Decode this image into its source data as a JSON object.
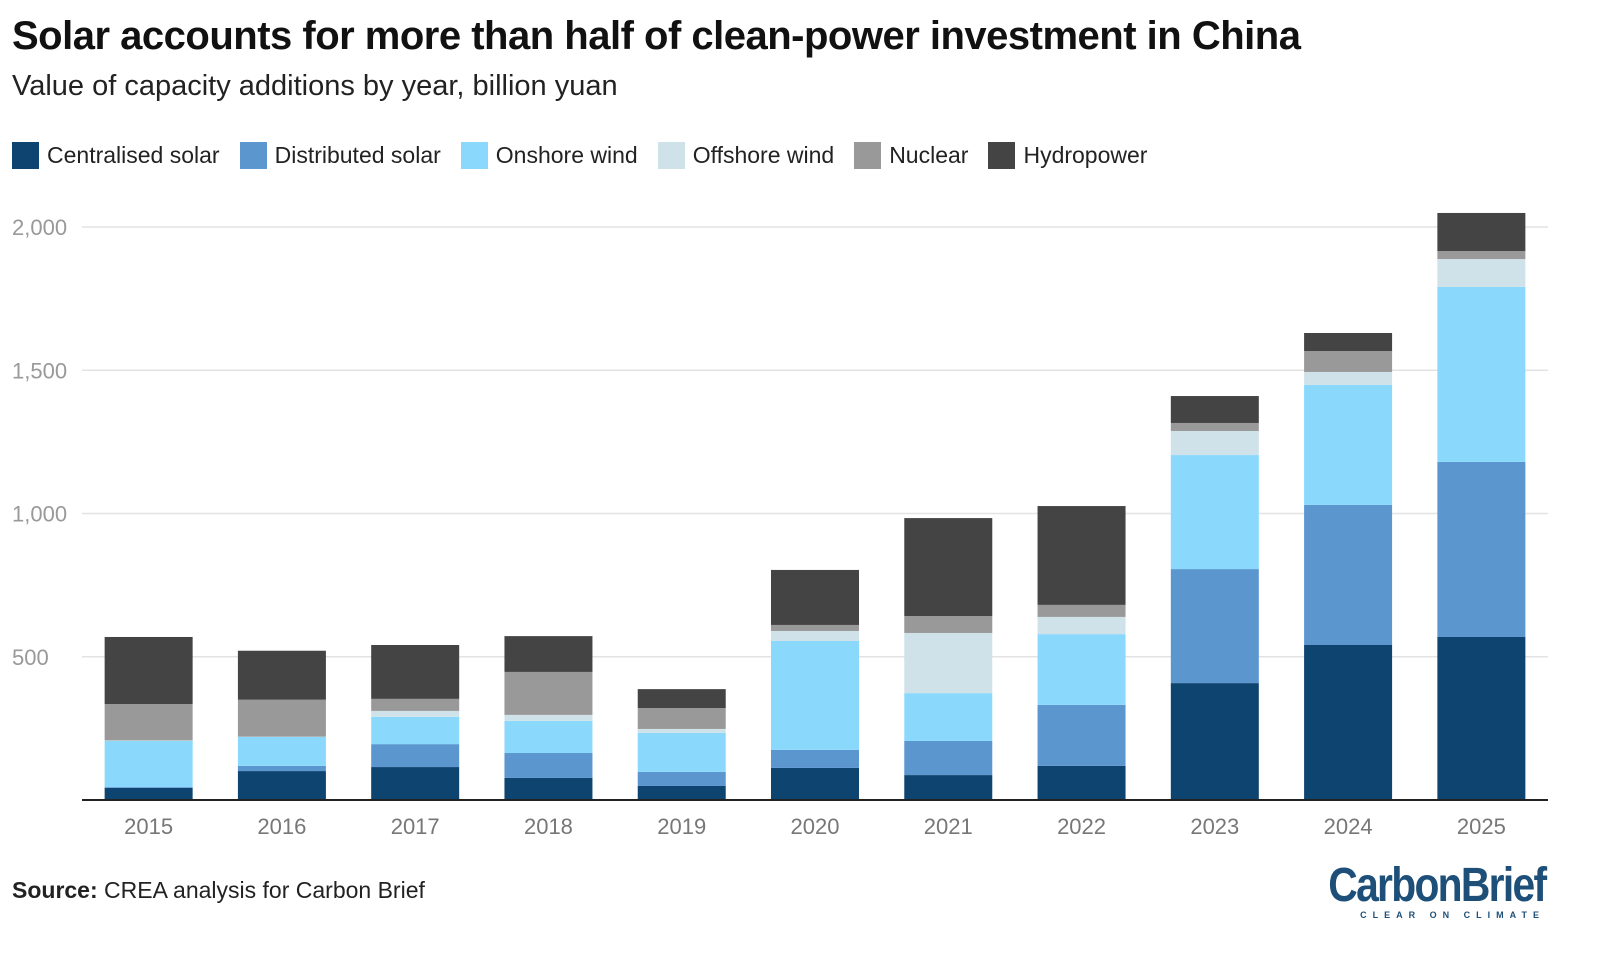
{
  "title": "Solar accounts for more than half of clean-power investment in China",
  "subtitle": "Value of capacity additions by year, billion yuan",
  "source_label": "Source:",
  "source_text": " CREA analysis for Carbon Brief",
  "logo": {
    "main": "CarbonBrief",
    "tagline": "CLEAR ON CLIMATE"
  },
  "chart_data": {
    "type": "bar",
    "stacked": true,
    "title": "Solar accounts for more than half of clean-power investment in China",
    "subtitle": "Value of capacity additions by year, billion yuan",
    "xlabel": "",
    "ylabel": "",
    "ylim": [
      0,
      2000
    ],
    "yticks": [
      0,
      500,
      1000,
      1500,
      2000
    ],
    "ytick_labels": [
      "",
      "500",
      "1,000",
      "1,500",
      "2,000"
    ],
    "grid": true,
    "legend_position": "top-left",
    "categories": [
      "2015",
      "2016",
      "2017",
      "2018",
      "2019",
      "2020",
      "2021",
      "2022",
      "2023",
      "2024",
      "2025"
    ],
    "series": [
      {
        "name": "Centralised solar",
        "color": "#0e4470",
        "values": [
          42,
          101,
          115,
          77,
          49,
          112,
          87,
          119,
          408,
          541,
          569
        ]
      },
      {
        "name": "Distributed solar",
        "color": "#5b96cf",
        "values": [
          3,
          18,
          80,
          87,
          49,
          63,
          119,
          213,
          398,
          489,
          611
        ]
      },
      {
        "name": "Onshore wind",
        "color": "#8ad9fd",
        "values": [
          161,
          101,
          95,
          112,
          136,
          380,
          167,
          247,
          398,
          419,
          611
        ]
      },
      {
        "name": "Offshore wind",
        "color": "#cfe2ea",
        "values": [
          2,
          1,
          21,
          21,
          14,
          35,
          210,
          60,
          84,
          45,
          97
        ]
      },
      {
        "name": "Nuclear",
        "color": "#999999",
        "values": [
          127,
          129,
          42,
          150,
          73,
          21,
          59,
          42,
          28,
          73,
          28
        ]
      },
      {
        "name": "Hydropower",
        "color": "#444444",
        "values": [
          234,
          171,
          188,
          125,
          66,
          192,
          342,
          345,
          94,
          63,
          133
        ]
      }
    ]
  }
}
